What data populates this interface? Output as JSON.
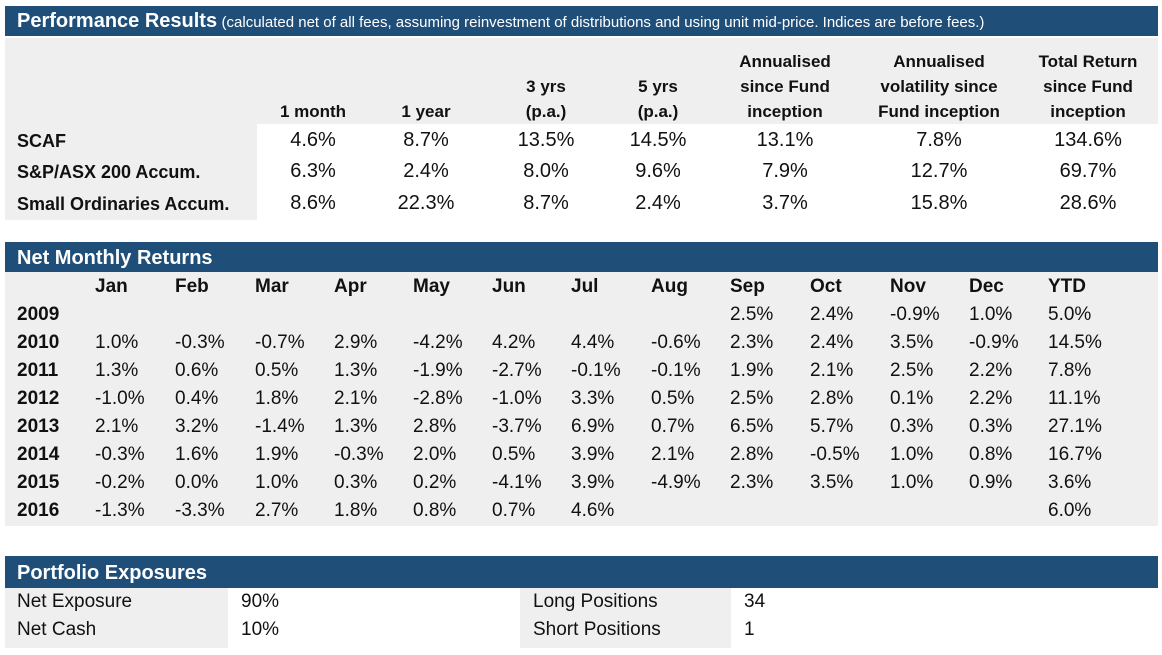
{
  "performance": {
    "title": "Performance Results",
    "subtitle": "(calculated net of all fees, assuming reinvestment of distributions and using unit mid-price. Indices are before fees.)",
    "columns": [
      [
        "1 month"
      ],
      [
        "1 year"
      ],
      [
        "3 yrs",
        "(p.a.)"
      ],
      [
        "5 yrs",
        "(p.a.)"
      ],
      [
        "Annualised",
        "since  Fund",
        "inception"
      ],
      [
        "Annualised",
        "volatility since",
        "Fund inception"
      ],
      [
        "Total Return",
        "since  Fund",
        "inception"
      ]
    ],
    "rows": [
      {
        "label": "SCAF",
        "values": [
          "4.6%",
          "8.7%",
          "13.5%",
          "14.5%",
          "13.1%",
          "7.8%",
          "134.6%"
        ]
      },
      {
        "label": "S&P/ASX 200 Accum.",
        "values": [
          "6.3%",
          "2.4%",
          "8.0%",
          "9.6%",
          "7.9%",
          "12.7%",
          "69.7%"
        ]
      },
      {
        "label": "Small Ordinaries Accum.",
        "values": [
          "8.6%",
          "22.3%",
          "8.7%",
          "2.4%",
          "3.7%",
          "15.8%",
          "28.6%"
        ]
      }
    ]
  },
  "monthly": {
    "title": "Net Monthly Returns",
    "months": [
      "Jan",
      "Feb",
      "Mar",
      "Apr",
      "May",
      "Jun",
      "Jul",
      "Aug",
      "Sep",
      "Oct",
      "Nov",
      "Dec",
      "YTD"
    ],
    "rows": [
      {
        "year": "2009",
        "values": [
          "",
          "",
          "",
          "",
          "",
          "",
          "",
          "",
          "2.5%",
          "2.4%",
          "-0.9%",
          "1.0%",
          "5.0%"
        ]
      },
      {
        "year": "2010",
        "values": [
          "1.0%",
          "-0.3%",
          "-0.7%",
          "2.9%",
          "-4.2%",
          "4.2%",
          "4.4%",
          "-0.6%",
          "2.3%",
          "2.4%",
          "3.5%",
          "-0.9%",
          "14.5%"
        ]
      },
      {
        "year": "2011",
        "values": [
          "1.3%",
          "0.6%",
          "0.5%",
          "1.3%",
          "-1.9%",
          "-2.7%",
          "-0.1%",
          "-0.1%",
          "1.9%",
          "2.1%",
          "2.5%",
          "2.2%",
          "7.8%"
        ]
      },
      {
        "year": "2012",
        "values": [
          "-1.0%",
          "0.4%",
          "1.8%",
          "2.1%",
          "-2.8%",
          "-1.0%",
          "3.3%",
          "0.5%",
          "2.5%",
          "2.8%",
          "0.1%",
          "2.2%",
          "11.1%"
        ]
      },
      {
        "year": "2013",
        "values": [
          "2.1%",
          "3.2%",
          "-1.4%",
          "1.3%",
          "2.8%",
          "-3.7%",
          "6.9%",
          "0.7%",
          "6.5%",
          "5.7%",
          "0.3%",
          "0.3%",
          "27.1%"
        ]
      },
      {
        "year": "2014",
        "values": [
          "-0.3%",
          "1.6%",
          "1.9%",
          "-0.3%",
          "2.0%",
          "0.5%",
          "3.9%",
          "2.1%",
          "2.8%",
          "-0.5%",
          "1.0%",
          "0.8%",
          "16.7%"
        ]
      },
      {
        "year": "2015",
        "values": [
          "-0.2%",
          "0.0%",
          "1.0%",
          "0.3%",
          "0.2%",
          "-4.1%",
          "3.9%",
          "-4.9%",
          "2.3%",
          "3.5%",
          "1.0%",
          "0.9%",
          "3.6%"
        ]
      },
      {
        "year": "2016",
        "values": [
          "-1.3%",
          "-3.3%",
          "2.7%",
          "1.8%",
          "0.8%",
          "0.7%",
          "4.6%",
          "",
          "",
          "",
          "",
          "",
          "6.0%"
        ]
      }
    ]
  },
  "exposures": {
    "title": "Portfolio Exposures",
    "items": [
      {
        "label": "Net Exposure",
        "value": "90%"
      },
      {
        "label": "Net Cash",
        "value": "10%"
      },
      {
        "label": "Long Positions",
        "value": "34"
      },
      {
        "label": "Short Positions",
        "value": "1"
      }
    ]
  },
  "colors": {
    "band": "#1f4e79",
    "grey": "#efefef"
  }
}
